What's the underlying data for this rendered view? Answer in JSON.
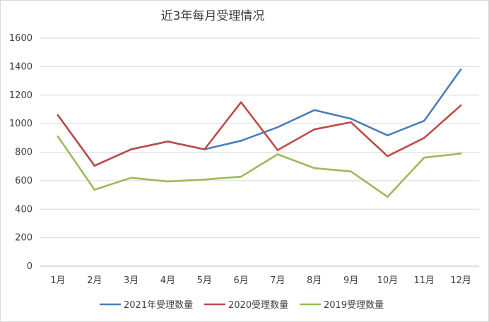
{
  "chart_data": {
    "type": "line",
    "title": "近3年每月受理情况",
    "xlabel": "",
    "ylabel": "",
    "categories": [
      "1月",
      "2月",
      "3月",
      "4月",
      "5月",
      "6月",
      "7月",
      "8月",
      "9月",
      "10月",
      "11月",
      "12月"
    ],
    "ylim": [
      0,
      1600
    ],
    "yticks": [
      0,
      200,
      400,
      600,
      800,
      1000,
      1200,
      1400,
      1600
    ],
    "grid": true,
    "legend_position": "bottom",
    "series": [
      {
        "name": "2021年受理数量",
        "color": "#4a7ebb",
        "values": [
          1060,
          705,
          820,
          875,
          820,
          880,
          975,
          1095,
          1035,
          918,
          1020,
          1380
        ]
      },
      {
        "name": "2020受理数量",
        "color": "#be4b48",
        "values": [
          1060,
          705,
          820,
          875,
          820,
          1150,
          815,
          960,
          1010,
          772,
          900,
          1128
        ]
      },
      {
        "name": "2019受理数量",
        "color": "#9bbb59",
        "values": [
          910,
          537,
          620,
          595,
          608,
          628,
          785,
          688,
          665,
          487,
          762,
          790
        ]
      }
    ]
  }
}
